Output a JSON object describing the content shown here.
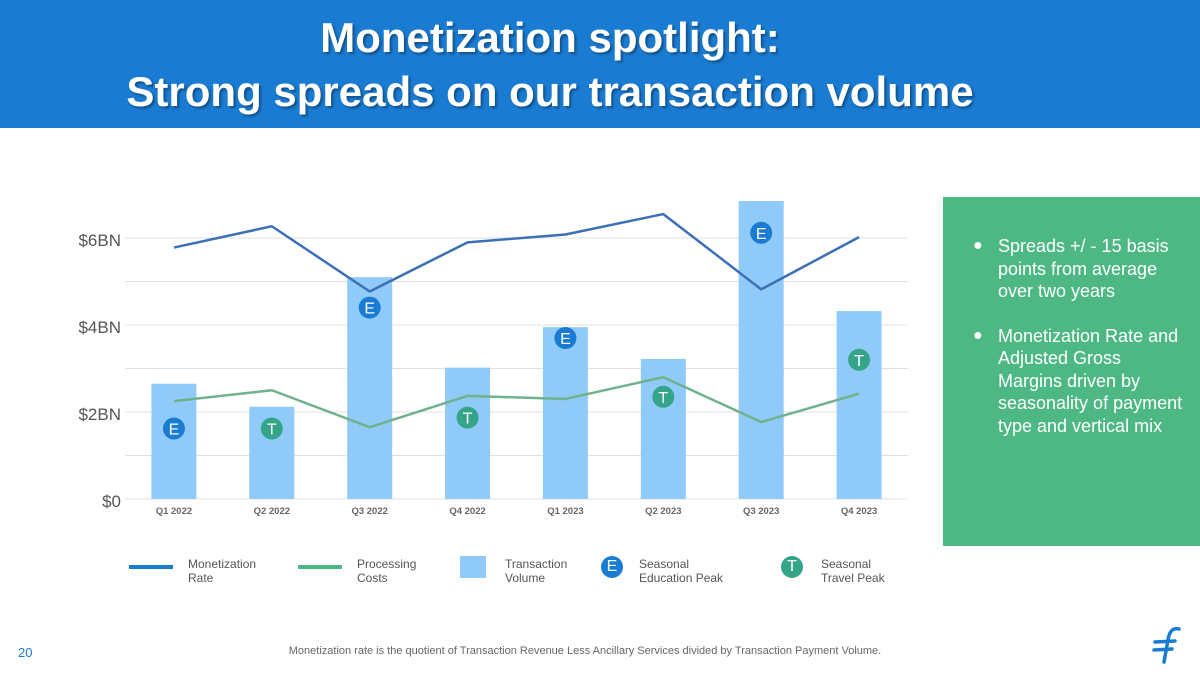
{
  "header": {
    "title_line1": "Monetization spotlight:",
    "title_line2": "Strong spreads on our transaction volume",
    "bg_color": "#1a7bd2"
  },
  "chart_data": {
    "type": "bar",
    "categories": [
      "Q1 2022",
      "Q2 2022",
      "Q3 2022",
      "Q4 2022",
      "Q1 2023",
      "Q2 2023",
      "Q3 2023",
      "Q4 2023"
    ],
    "y_axis": {
      "ticks": [
        0,
        2,
        4,
        6
      ],
      "tick_labels": [
        "$0",
        "$2BN",
        "$4BN",
        "$6BN"
      ],
      "ylim": [
        0,
        7
      ],
      "grid": true
    },
    "series": [
      {
        "name": "Transaction Volume",
        "kind": "bar",
        "color": "#90caf9",
        "values": [
          2.65,
          2.12,
          5.1,
          3.02,
          3.95,
          3.22,
          6.85,
          4.32
        ]
      },
      {
        "name": "Monetization Rate",
        "kind": "line",
        "color": "#3b70b6",
        "values": [
          5.78,
          6.27,
          4.77,
          5.9,
          6.08,
          6.55,
          4.82,
          6.02
        ]
      },
      {
        "name": "Processing Costs",
        "kind": "line",
        "color": "#6fb28b",
        "values": [
          2.25,
          2.5,
          1.65,
          2.37,
          2.3,
          2.8,
          1.77,
          2.42
        ]
      }
    ],
    "markers": [
      {
        "letter": "E",
        "category": "Q1 2022",
        "y": 1.62
      },
      {
        "letter": "T",
        "category": "Q2 2022",
        "y": 1.62
      },
      {
        "letter": "E",
        "category": "Q3 2022",
        "y": 4.4
      },
      {
        "letter": "T",
        "category": "Q4 2022",
        "y": 1.87
      },
      {
        "letter": "E",
        "category": "Q1 2023",
        "y": 3.7
      },
      {
        "letter": "T",
        "category": "Q2 2023",
        "y": 2.35
      },
      {
        "letter": "E",
        "category": "Q3 2023",
        "y": 6.12
      },
      {
        "letter": "T",
        "category": "Q4 2023",
        "y": 3.2
      }
    ],
    "marker_colors": {
      "E": "#1a7bd2",
      "T": "#35a58a"
    },
    "legend_position": "bottom"
  },
  "legend": {
    "monetization_line1": "Monetization",
    "monetization_line2": "Rate",
    "processing_line1": "Processing",
    "processing_line2": "Costs",
    "volume_line1": "Transaction",
    "volume_line2": "Volume",
    "education_badge": "E",
    "education_line1": "Seasonal",
    "education_line2": "Education Peak",
    "travel_badge": "T",
    "travel_line1": "Seasonal",
    "travel_line2": "Travel Peak"
  },
  "callout": {
    "bullet_symbol": "●",
    "bullet1": "Spreads +/  - 15 basis points from average over two years",
    "bullet2": "Monetization Rate and Adjusted Gross Margins driven by seasonality of payment type and vertical mix",
    "bg_color": "#4db883"
  },
  "footer": {
    "page_number": "20",
    "footnote": "Monetization rate is the quotient of Transaction Revenue Less Ancillary Services divided by Transaction Payment Volume."
  },
  "logo": {
    "icon": "flywire-logo-icon"
  }
}
